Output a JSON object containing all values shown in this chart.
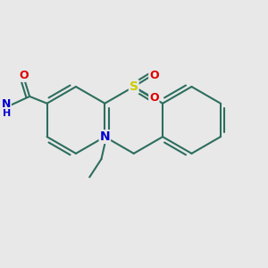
{
  "bg_color": "#e8e8e8",
  "bond_color": "#2d6e5e",
  "bond_lw": 1.5,
  "atom_colors": {
    "O": "#dd0000",
    "N": "#0000cc",
    "S": "#cccc00",
    "H": "#2d6e5e"
  },
  "ring_r": 0.48,
  "ao": 30,
  "figsize": [
    3.0,
    3.0
  ],
  "dpi": 100,
  "xlim": [
    0.1,
    3.8
  ],
  "ylim": [
    0.5,
    3.5
  ]
}
